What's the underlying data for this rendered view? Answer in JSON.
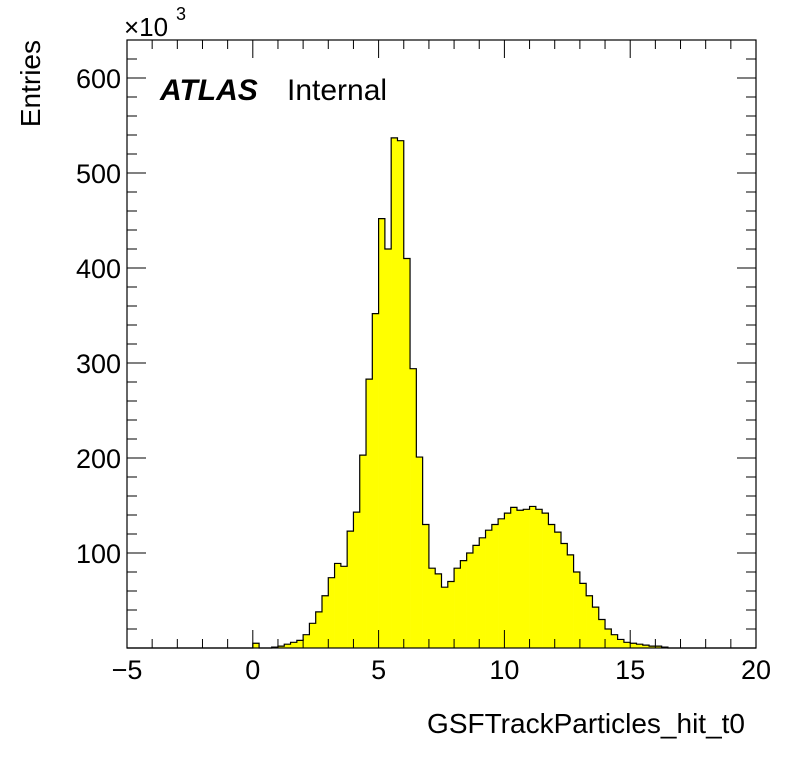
{
  "chart_data": {
    "type": "bar",
    "style": "histogram",
    "xlabel": "GSFTrackParticles_hit_t0",
    "ylabel": "Entries",
    "y_multiplier": {
      "base": "×10",
      "exponent": "3"
    },
    "xlim": [
      -5,
      20
    ],
    "ylim": [
      0,
      640
    ],
    "bin_width": 0.25,
    "x_start": -5,
    "x_ticks": [
      -5,
      0,
      5,
      10,
      15,
      20
    ],
    "x_tick_labels": [
      "−5",
      "0",
      "5",
      "10",
      "15",
      "20"
    ],
    "y_ticks": [
      100,
      200,
      300,
      400,
      500,
      600
    ],
    "y_tick_labels": [
      "100",
      "200",
      "300",
      "400",
      "500",
      "600"
    ],
    "fill_color": "#ffff00",
    "line_color": "#000000",
    "values": [
      0,
      0,
      0,
      0,
      0,
      0,
      0,
      0,
      0,
      0,
      0,
      0,
      0,
      0,
      0,
      0,
      0,
      0,
      0,
      0,
      5,
      0,
      0,
      1,
      2,
      4,
      6,
      8,
      14,
      26,
      38,
      55,
      74,
      89,
      86,
      123,
      143,
      203,
      283,
      352,
      452,
      420,
      537,
      534,
      410,
      294,
      201,
      130,
      84,
      78,
      64,
      70,
      84,
      92,
      100,
      108,
      116,
      124,
      130,
      136,
      142,
      148,
      145,
      146,
      149,
      146,
      142,
      130,
      122,
      110,
      98,
      80,
      68,
      55,
      43,
      30,
      20,
      14,
      9,
      6,
      5,
      4,
      3,
      2,
      2,
      1,
      0,
      0,
      0,
      0,
      0,
      0,
      0,
      0,
      0,
      0,
      0,
      0,
      0,
      0
    ],
    "annotations": [
      {
        "text": "ATLAS",
        "style": "bold-italic"
      },
      {
        "text": "Internal",
        "style": "normal"
      }
    ]
  }
}
